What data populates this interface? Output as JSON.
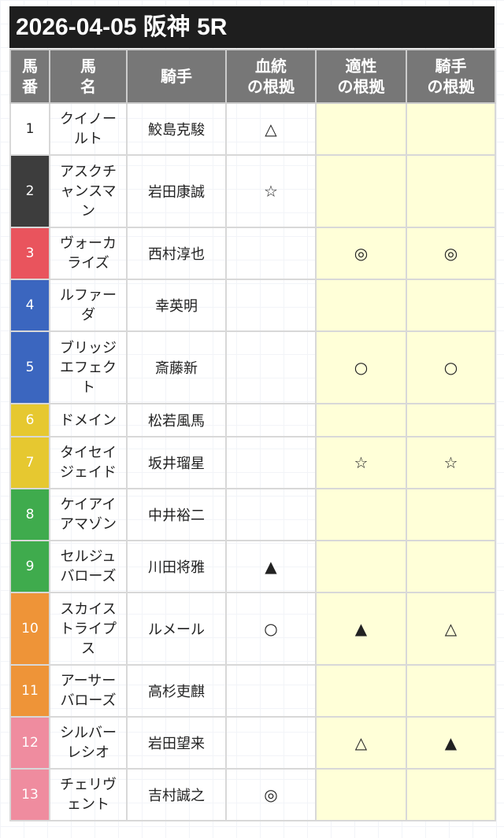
{
  "title": "2026-04-05 阪神 5R",
  "headers": [
    "馬\n番",
    "馬\n名",
    "騎手",
    "血統\nの根拠",
    "適性\nの根拠",
    "騎手\nの根拠"
  ],
  "colors": {
    "1": "#ffffff",
    "2": "#3d3d3d",
    "3": "#e9545d",
    "4": "#3b66bf",
    "5": "#3b66bf",
    "6": "#e6c830",
    "7": "#e6c830",
    "8": "#3fab4d",
    "9": "#3fab4d",
    "10": "#ee9438",
    "11": "#ee9438",
    "12": "#ef8c9f",
    "13": "#ef8c9f",
    "highlight": "#ffffd8",
    "header": "#777777",
    "title_bg": "#1e1e1e"
  },
  "rows": [
    {
      "num": "1",
      "name": "クイノールト",
      "jockey": "鮫島克駿",
      "blood": "△",
      "apt": "",
      "jock": ""
    },
    {
      "num": "2",
      "name": "アスクチャンスマン",
      "jockey": "岩田康誠",
      "blood": "☆",
      "apt": "",
      "jock": ""
    },
    {
      "num": "3",
      "name": "ヴォーカライズ",
      "jockey": "西村淳也",
      "blood": "",
      "apt": "◎",
      "jock": "◎"
    },
    {
      "num": "4",
      "name": "ルファーダ",
      "jockey": "幸英明",
      "blood": "",
      "apt": "",
      "jock": ""
    },
    {
      "num": "5",
      "name": "ブリッジエフェクト",
      "jockey": "斎藤新",
      "blood": "",
      "apt": "○",
      "jock": "○"
    },
    {
      "num": "6",
      "name": "ドメイン",
      "jockey": "松若風馬",
      "blood": "",
      "apt": "",
      "jock": ""
    },
    {
      "num": "7",
      "name": "タイセイジェイド",
      "jockey": "坂井瑠星",
      "blood": "",
      "apt": "☆",
      "jock": "☆"
    },
    {
      "num": "8",
      "name": "ケイアイアマゾン",
      "jockey": "中井裕二",
      "blood": "",
      "apt": "",
      "jock": ""
    },
    {
      "num": "9",
      "name": "セルジュバローズ",
      "jockey": "川田将雅",
      "blood": "▲",
      "apt": "",
      "jock": ""
    },
    {
      "num": "10",
      "name": "スカイストライプス",
      "jockey": "ルメール",
      "blood": "○",
      "apt": "▲",
      "jock": "△"
    },
    {
      "num": "11",
      "name": "アーサーバローズ",
      "jockey": "高杉吏麒",
      "blood": "",
      "apt": "",
      "jock": ""
    },
    {
      "num": "12",
      "name": "シルバーレシオ",
      "jockey": "岩田望来",
      "blood": "",
      "apt": "△",
      "jock": "▲"
    },
    {
      "num": "13",
      "name": "チェリヴェント",
      "jockey": "吉村誠之",
      "blood": "◎",
      "apt": "",
      "jock": ""
    }
  ]
}
